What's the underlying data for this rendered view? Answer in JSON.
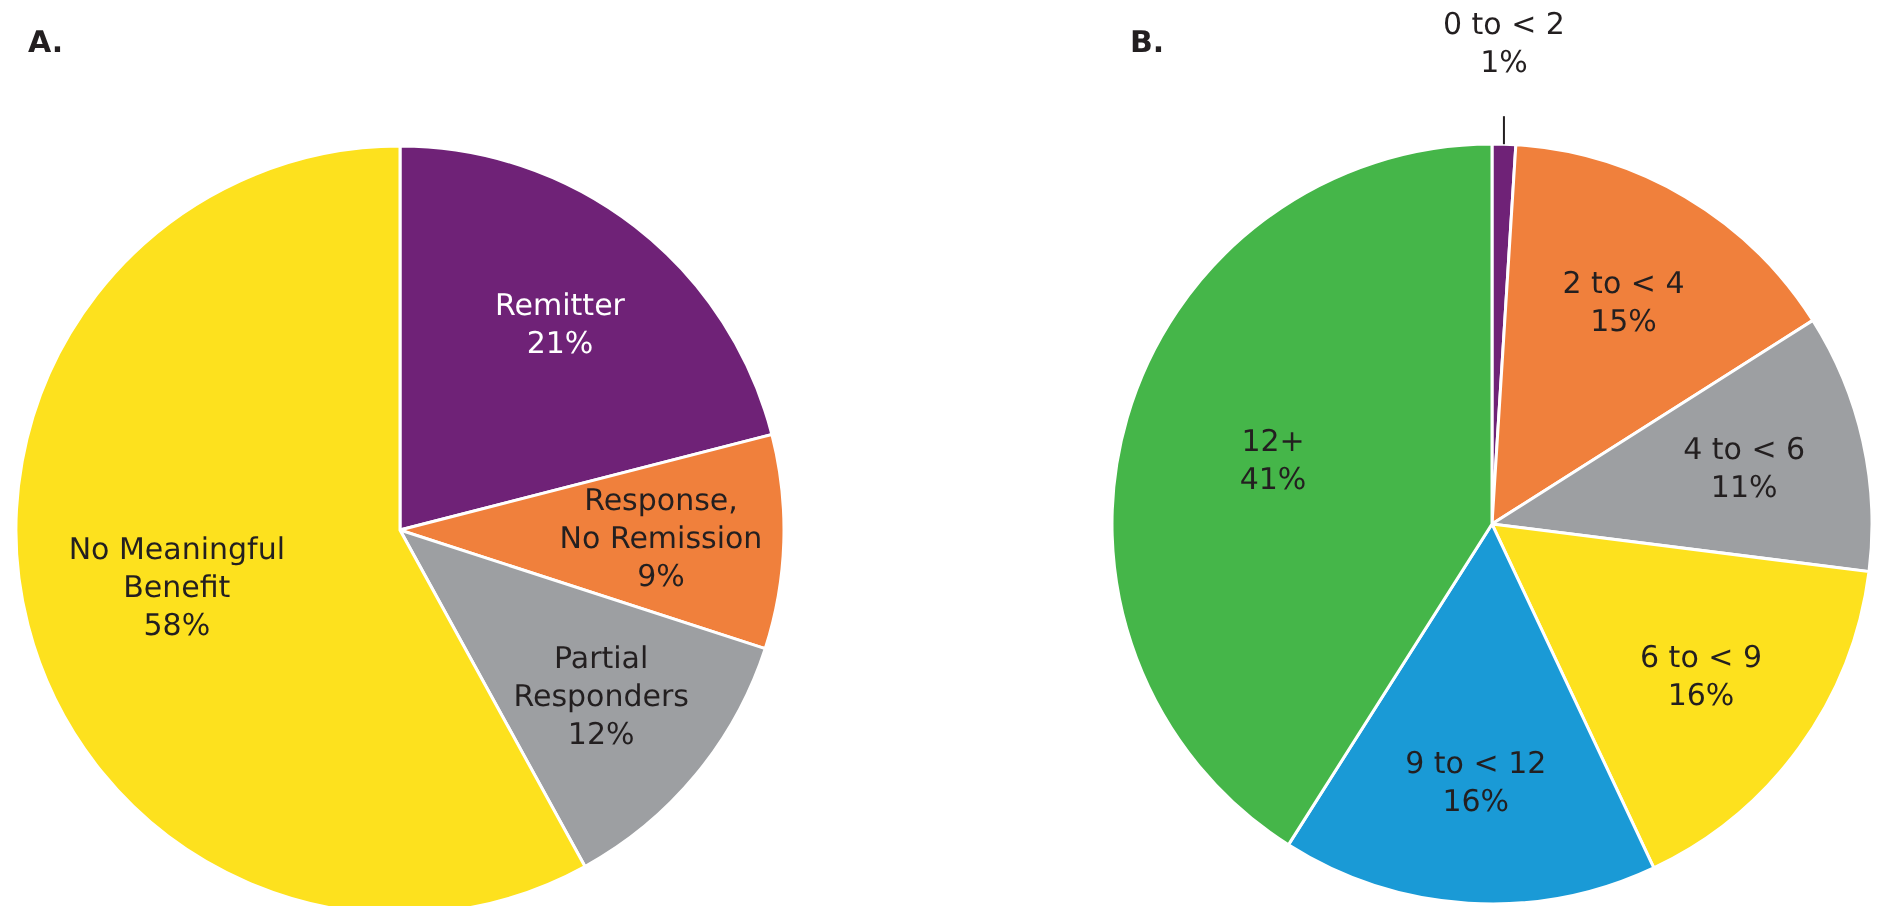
{
  "chart_data": [
    {
      "type": "pie",
      "title": "A.",
      "categories": [
        "Remitter",
        "Response,\nNo Remission",
        "Partial\nResponders",
        "No Meaningful\nBenefit"
      ],
      "values": [
        21,
        9,
        12,
        58
      ],
      "value_labels": [
        "21%",
        "9%",
        "12%",
        "58%"
      ],
      "colors": [
        "#6f2277",
        "#f0803c",
        "#9d9fa2",
        "#fde11e"
      ]
    },
    {
      "type": "pie",
      "title": "B.",
      "categories": [
        "0 to < 2",
        "2 to < 4",
        "4 to < 6",
        "6 to < 9",
        "9 to < 12",
        "12+"
      ],
      "values": [
        1,
        15,
        11,
        16,
        16,
        41
      ],
      "value_labels": [
        "1%",
        "15%",
        "11%",
        "16%",
        "16%",
        "41%"
      ],
      "colors": [
        "#6f2277",
        "#f0803c",
        "#9d9fa2",
        "#fde11e",
        "#1a9ad6",
        "#45b649"
      ]
    }
  ]
}
